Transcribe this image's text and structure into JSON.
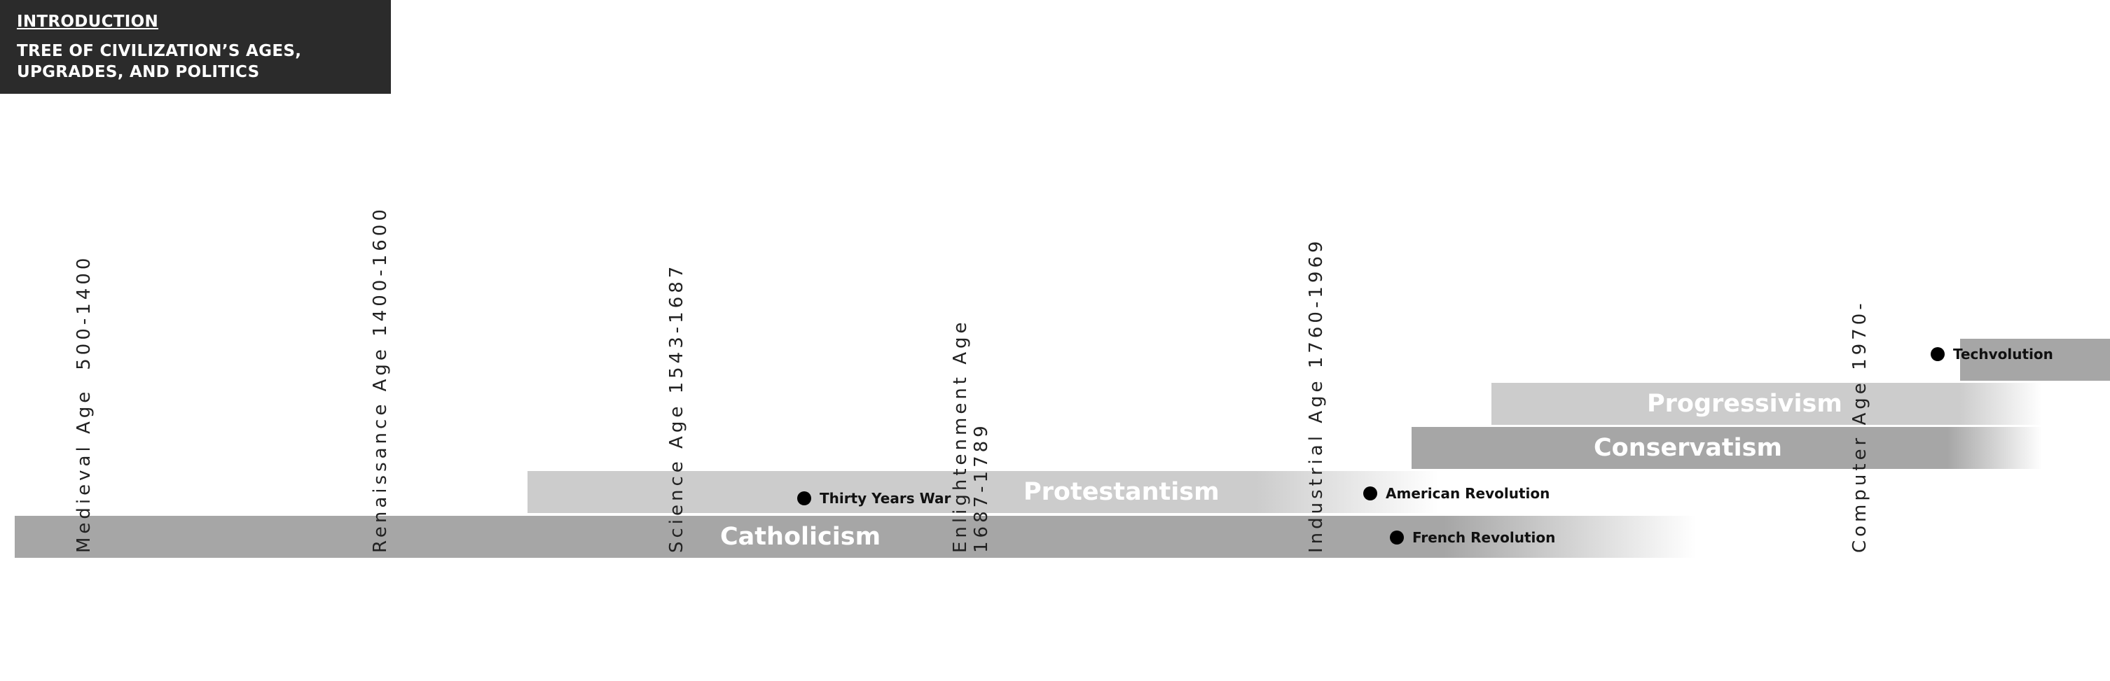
{
  "header": {
    "link": "INTRODUCTION",
    "title": "TREE OF CIVILIZATION’S AGES, UPGRADES, AND POLITICS"
  },
  "bands": {
    "catholicism": "Catholicism",
    "protestantism": "Protestantism",
    "conservatism": "Conservatism",
    "progressivism": "Progressivism"
  },
  "eras": {
    "medieval": {
      "name": "Medieval Age",
      "years": "500-1400"
    },
    "renaissance": "Renaissance Age 1400-1600",
    "science": "Science Age 1543-1687",
    "enlightenment": {
      "name": "Enlightenment Age",
      "years": "1687-1789"
    },
    "industrial": "Industrial Age 1760-1969",
    "computer": "Computer Age 1970-"
  },
  "events": {
    "thirty_years_war": "Thirty Years War",
    "american_revolution": "American Revolution",
    "french_revolution": "French Revolution",
    "techvolution": "Techvolution"
  },
  "colors": {
    "header_bg": "#2b2b2b",
    "band_dark": "#a6a6a6",
    "band_light": "#cccccc"
  }
}
